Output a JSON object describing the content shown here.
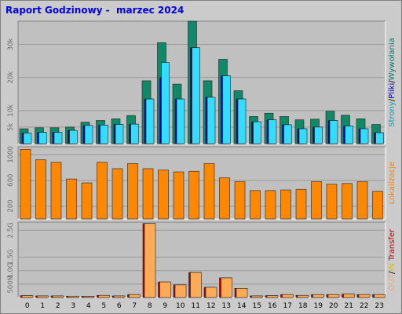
{
  "title": "Raport Godzinowy -  marzec 2024",
  "chart_data": [
    {
      "type": "bar",
      "categories": [
        "0",
        "1",
        "2",
        "3",
        "4",
        "5",
        "6",
        "7",
        "8",
        "9",
        "10",
        "11",
        "12",
        "13",
        "14",
        "15",
        "16",
        "17",
        "18",
        "19",
        "20",
        "21",
        "22",
        "23"
      ],
      "y_ticks": [
        "5k",
        "10k",
        "20k",
        "30k"
      ],
      "y_tick_values": [
        5000,
        10000,
        20000,
        30000
      ],
      "ylim": [
        0,
        37000
      ],
      "legend_parts": [
        {
          "text": "Wywołania",
          "color": "#008060"
        },
        {
          "text": "/",
          "color": "#000000"
        },
        {
          "text": "Pliki",
          "color": "#0000c0"
        },
        {
          "text": "/",
          "color": "#000000"
        },
        {
          "text": "Strony",
          "color": "#00a0c0"
        }
      ],
      "series": [
        {
          "name": "Wywołania",
          "color": "#118866",
          "values": [
            4500,
            4800,
            4800,
            5000,
            6500,
            7000,
            7500,
            8500,
            19000,
            30500,
            18000,
            37000,
            19000,
            25500,
            16000,
            8200,
            9200,
            8200,
            7200,
            7400,
            9800,
            8600,
            7500,
            5800
          ]
        },
        {
          "name": "Pliki",
          "color": "#0000aa",
          "values": [
            3200,
            3400,
            3400,
            4000,
            5500,
            5600,
            5800,
            5900,
            13500,
            20000,
            13500,
            29000,
            14000,
            20500,
            13500,
            6600,
            7200,
            5700,
            4500,
            5000,
            7000,
            5300,
            4500,
            3300
          ]
        },
        {
          "name": "Strony",
          "color": "#33ddff",
          "values": [
            3200,
            3400,
            3400,
            4000,
            5500,
            5600,
            5800,
            5900,
            13500,
            24500,
            13500,
            29000,
            14000,
            20500,
            13500,
            6600,
            7200,
            5700,
            4500,
            5000,
            7000,
            5300,
            4500,
            3300
          ]
        }
      ]
    },
    {
      "type": "bar",
      "categories": [
        "0",
        "1",
        "2",
        "3",
        "4",
        "5",
        "6",
        "7",
        "8",
        "9",
        "10",
        "11",
        "12",
        "13",
        "14",
        "15",
        "16",
        "17",
        "18",
        "19",
        "20",
        "21",
        "22",
        "23"
      ],
      "y_ticks": [
        "200",
        "600",
        "1000"
      ],
      "y_tick_values": [
        200,
        600,
        1000
      ],
      "ylim": [
        0,
        1120
      ],
      "legend_parts": [
        {
          "text": "Lokalizacje",
          "color": "#ff8000"
        }
      ],
      "series": [
        {
          "name": "Lokalizacje",
          "color": "#ff8800",
          "values": [
            1080,
            920,
            880,
            620,
            560,
            880,
            780,
            860,
            780,
            760,
            730,
            740,
            860,
            640,
            580,
            440,
            440,
            450,
            460,
            580,
            540,
            550,
            580,
            430
          ]
        }
      ]
    },
    {
      "type": "bar",
      "categories": [
        "0",
        "1",
        "2",
        "3",
        "4",
        "5",
        "6",
        "7",
        "8",
        "9",
        "10",
        "11",
        "12",
        "13",
        "14",
        "15",
        "16",
        "17",
        "18",
        "19",
        "20",
        "21",
        "22",
        "23"
      ],
      "y_ticks": [
        "500M",
        "1.0G",
        "1.5G",
        "2.5G"
      ],
      "y_tick_values": [
        500,
        1000,
        1500,
        2500
      ],
      "ylim": [
        0,
        2800
      ],
      "legend_parts": [
        {
          "text": "Transfer",
          "color": "#c00000"
        },
        {
          "text": " ",
          "color": "#000000"
        },
        {
          "text": "IN",
          "color": "#e0c000"
        },
        {
          "text": "/",
          "color": "#000000"
        },
        {
          "text": "OUT",
          "color": "#ffa060"
        }
      ],
      "series": [
        {
          "name": "Transfer",
          "color": "#bb0000",
          "values": [
            70,
            60,
            60,
            50,
            45,
            80,
            60,
            110,
            2750,
            580,
            470,
            930,
            380,
            730,
            340,
            60,
            70,
            110,
            80,
            110,
            110,
            130,
            110,
            110
          ]
        },
        {
          "name": "OUT",
          "color": "#ffaa55",
          "values": [
            70,
            60,
            60,
            50,
            45,
            80,
            60,
            110,
            2750,
            580,
            470,
            930,
            380,
            730,
            340,
            60,
            70,
            110,
            80,
            110,
            110,
            130,
            110,
            110
          ]
        }
      ]
    }
  ]
}
